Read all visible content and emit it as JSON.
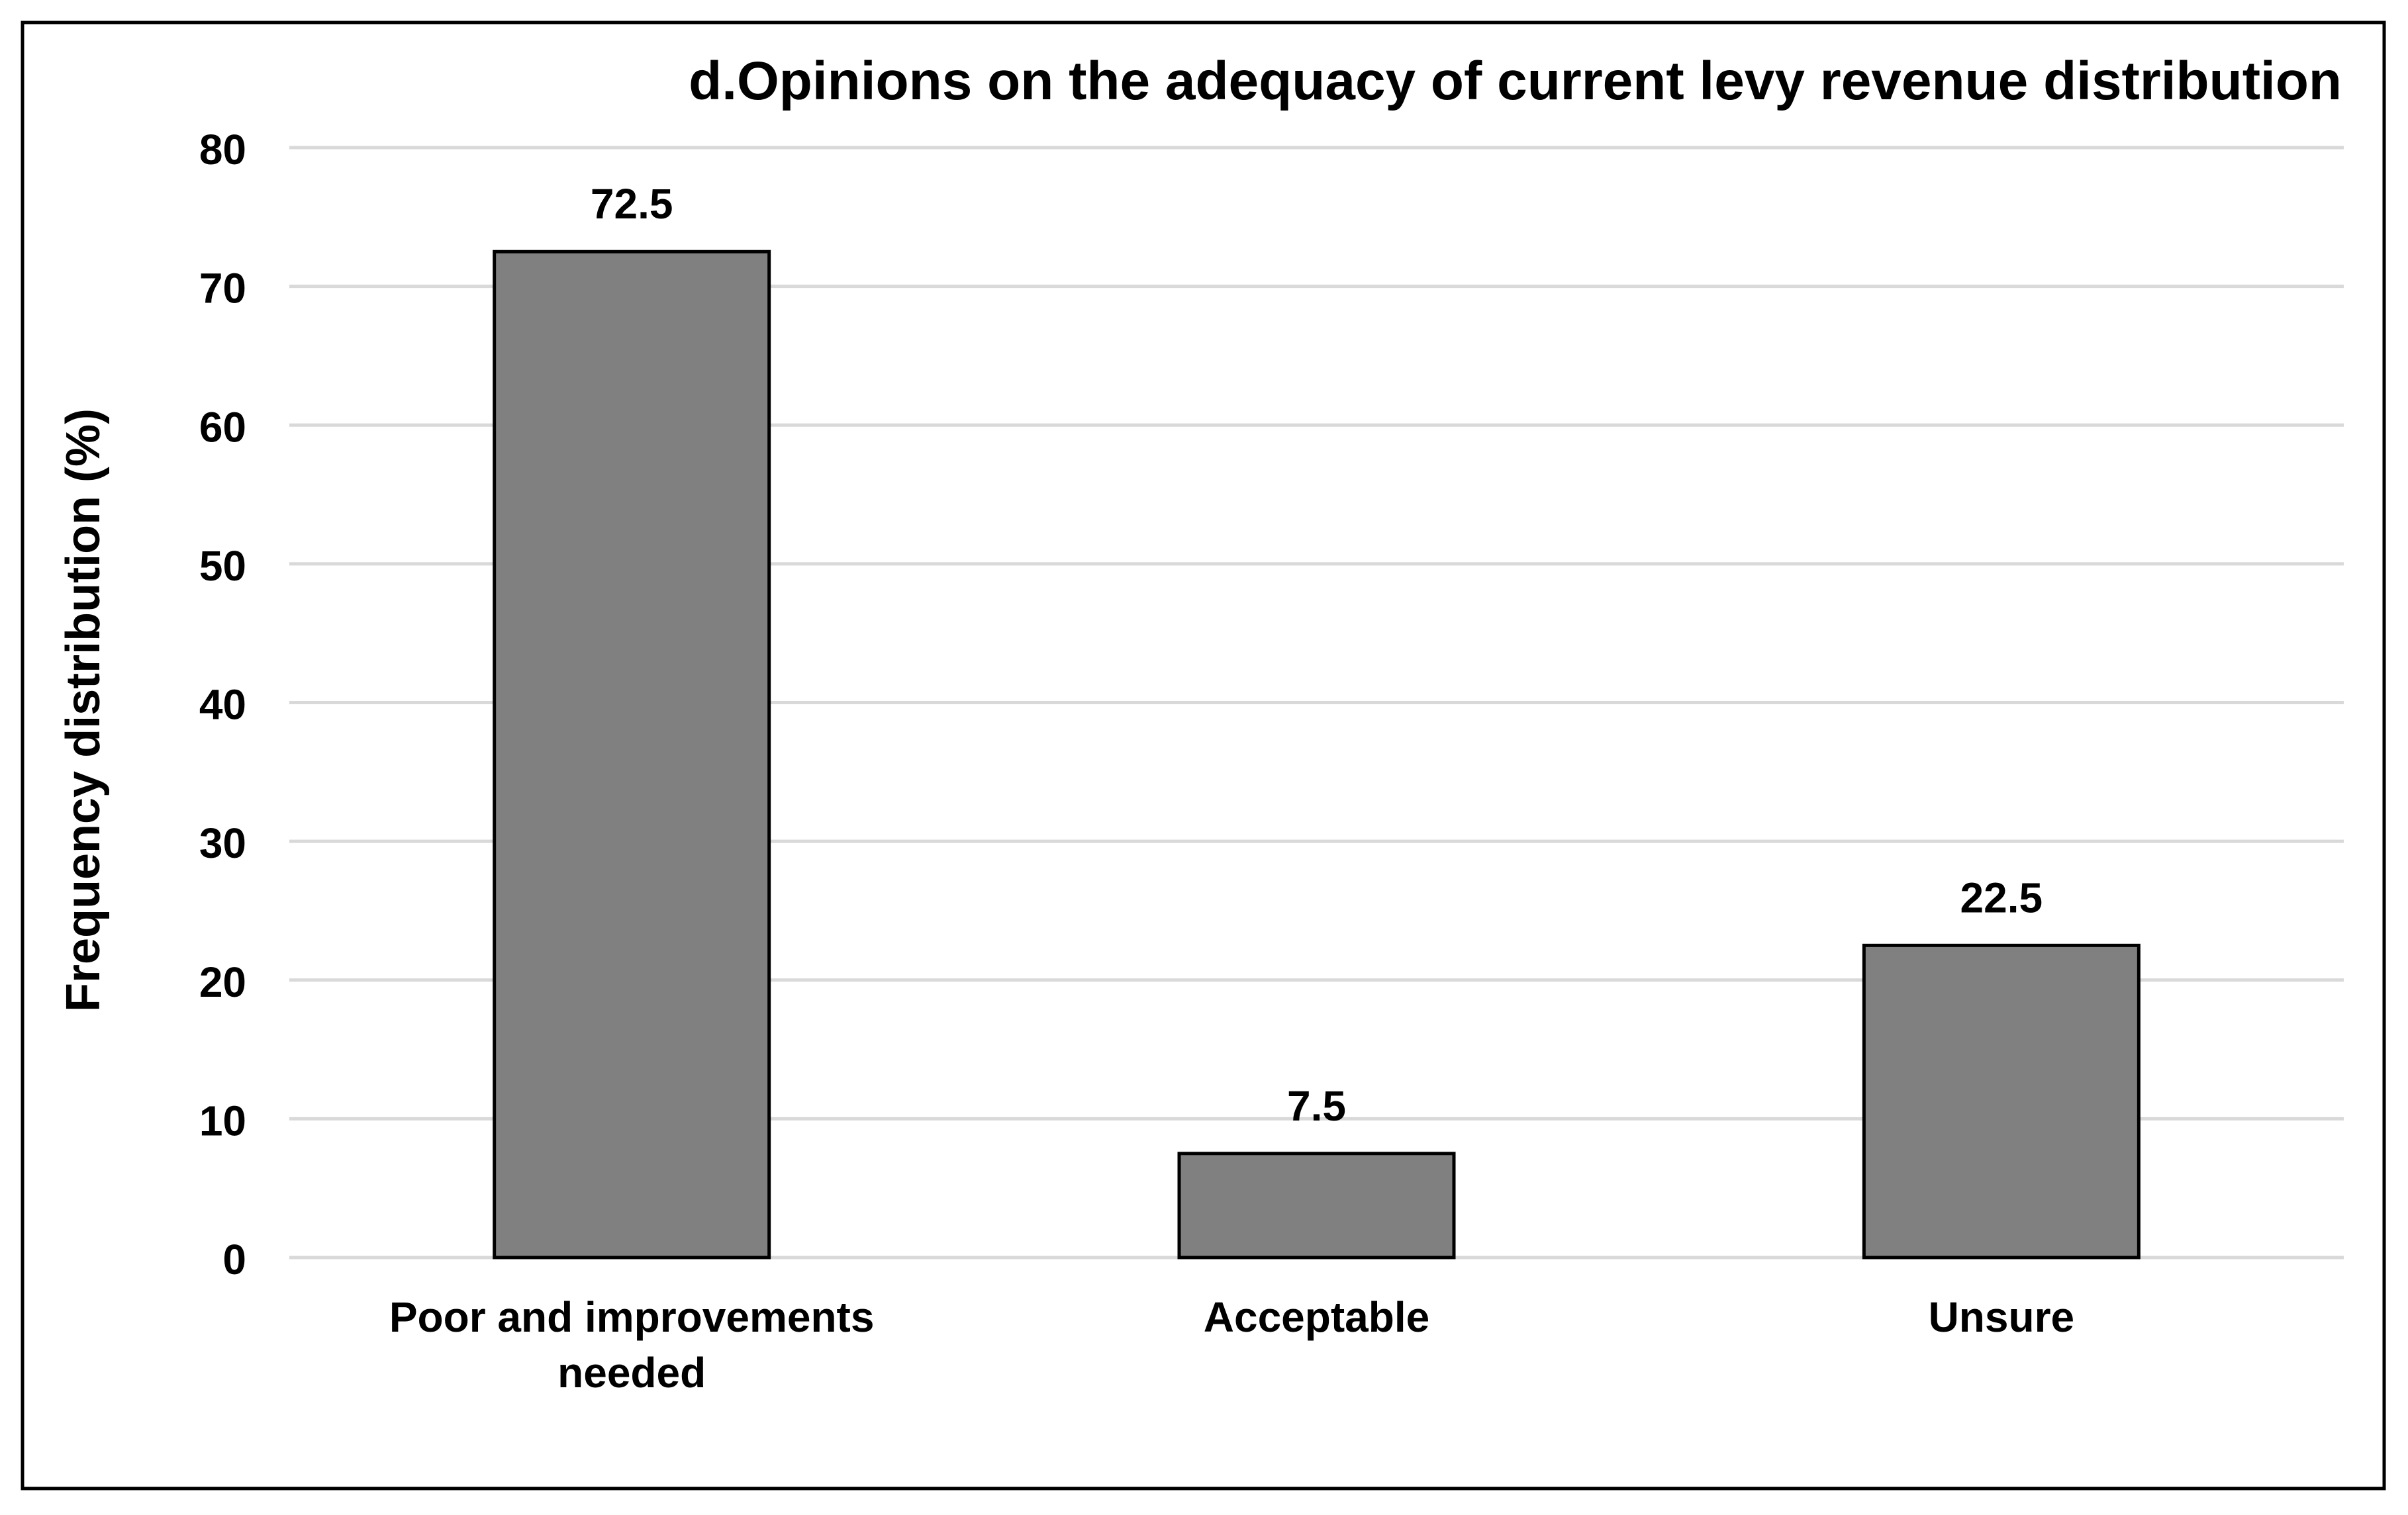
{
  "chart_data": {
    "type": "bar",
    "title": "d.Opinions on the adequacy of current levy revenue distribution",
    "xlabel": "",
    "ylabel": "Frequency distribution (%)",
    "categories": [
      [
        "Poor and improvements",
        "needed"
      ],
      [
        "Acceptable"
      ],
      [
        "Unsure"
      ]
    ],
    "values": [
      72.5,
      7.5,
      22.5
    ],
    "value_labels": [
      "72.5",
      "7.5",
      "22.5"
    ],
    "ylim": [
      0,
      80
    ],
    "yticks": [
      0,
      10,
      20,
      30,
      40,
      50,
      60,
      70,
      80
    ],
    "grid": true,
    "legend": "none",
    "colors": {
      "bar_fill": "#808080",
      "bar_stroke": "#000000",
      "grid": "#d9d9d9",
      "frame": "#000000"
    }
  }
}
